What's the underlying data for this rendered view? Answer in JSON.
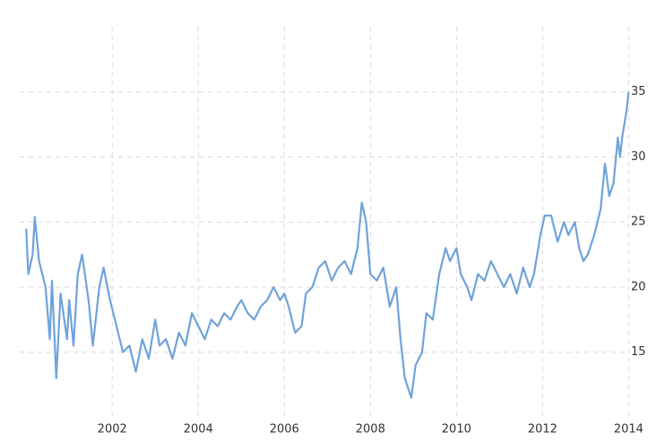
{
  "chart_data": {
    "type": "line",
    "x": [
      2000.0,
      2000.05,
      2000.15,
      2000.2,
      2000.3,
      2000.45,
      2000.55,
      2000.6,
      2000.7,
      2000.8,
      2000.95,
      2001.0,
      2001.1,
      2001.2,
      2001.3,
      2001.45,
      2001.55,
      2001.7,
      2001.8,
      2001.95,
      2002.1,
      2002.25,
      2002.4,
      2002.55,
      2002.7,
      2002.85,
      2003.0,
      2003.1,
      2003.25,
      2003.4,
      2003.55,
      2003.7,
      2003.85,
      2004.0,
      2004.15,
      2004.3,
      2004.45,
      2004.6,
      2004.75,
      2004.9,
      2005.0,
      2005.15,
      2005.3,
      2005.45,
      2005.6,
      2005.75,
      2005.9,
      2006.0,
      2006.1,
      2006.25,
      2006.4,
      2006.5,
      2006.65,
      2006.8,
      2006.95,
      2007.1,
      2007.25,
      2007.4,
      2007.55,
      2007.7,
      2007.8,
      2007.9,
      2008.0,
      2008.15,
      2008.3,
      2008.45,
      2008.6,
      2008.7,
      2008.8,
      2008.9,
      2008.95,
      2009.05,
      2009.2,
      2009.3,
      2009.45,
      2009.6,
      2009.75,
      2009.85,
      2010.0,
      2010.1,
      2010.25,
      2010.35,
      2010.5,
      2010.65,
      2010.8,
      2010.95,
      2011.1,
      2011.25,
      2011.4,
      2011.55,
      2011.7,
      2011.8,
      2011.95,
      2012.05,
      2012.2,
      2012.35,
      2012.5,
      2012.6,
      2012.75,
      2012.85,
      2012.95,
      2013.05,
      2013.2,
      2013.35,
      2013.45,
      2013.55,
      2013.65,
      2013.75,
      2013.8,
      2013.85,
      2013.9,
      2013.95,
      2014.0
    ],
    "series": [
      {
        "color": "#6fa3d9",
        "values": [
          24.5,
          21,
          22.5,
          25.4,
          22,
          20,
          16,
          20.5,
          13,
          19.5,
          16,
          19,
          15.5,
          21,
          22.5,
          19,
          15.5,
          20,
          21.5,
          19,
          17,
          15,
          15.5,
          13.5,
          16,
          14.5,
          17.5,
          15.5,
          16,
          14.5,
          16.5,
          15.5,
          18,
          17,
          16,
          17.5,
          17,
          18,
          17.5,
          18.5,
          19,
          18,
          17.5,
          18.5,
          19,
          20,
          19,
          19.5,
          18.5,
          16.5,
          17,
          19.5,
          20,
          21.5,
          22,
          20.5,
          21.5,
          22,
          21,
          23,
          26.5,
          25,
          21,
          20.5,
          21.5,
          18.5,
          20,
          16,
          13,
          12,
          11.5,
          14,
          15,
          18,
          17.5,
          21,
          23,
          22,
          23,
          21,
          20,
          19,
          21,
          20.5,
          22,
          21,
          20,
          21,
          19.5,
          21.5,
          20,
          21,
          24,
          25.5,
          25.5,
          23.5,
          25,
          24,
          25,
          23,
          22,
          22.5,
          24,
          26,
          29.5,
          27,
          28,
          31.5,
          30,
          31.5,
          32.5,
          33.5,
          35
        ]
      }
    ],
    "xlim": [
      1999.85,
      2014.2
    ],
    "ylim": [
      10.1,
      40
    ],
    "xticks": [
      2002,
      2004,
      2006,
      2008,
      2010,
      2012,
      2014
    ],
    "yticks": [
      15,
      20,
      25,
      30,
      35
    ],
    "grid": true
  }
}
